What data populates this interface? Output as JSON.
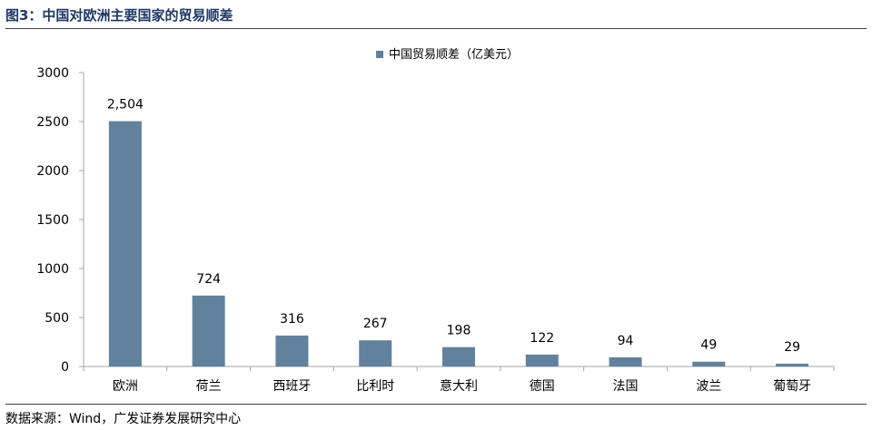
{
  "title": "图3：中国对欧洲主要国家的贸易顺差",
  "source": "数据来源：Wind，广发证券发展研究中心",
  "colors": {
    "bar": "#62819c",
    "axis": "#a6a6a6",
    "title": "#1f3864"
  },
  "chart_data": {
    "type": "bar",
    "title": "",
    "xlabel": "",
    "ylabel": "",
    "legend": {
      "position": "top-center"
    },
    "categories": [
      "欧洲",
      "荷兰",
      "西班牙",
      "比利时",
      "意大利",
      "德国",
      "法国",
      "波兰",
      "葡萄牙"
    ],
    "series": [
      {
        "name": "中国贸易顺差（亿美元）",
        "values": [
          2504,
          724,
          316,
          267,
          198,
          122,
          94,
          49,
          29
        ],
        "labels": [
          "2,504",
          "724",
          "316",
          "267",
          "198",
          "122",
          "94",
          "49",
          "29"
        ]
      }
    ],
    "ylim": [
      0,
      3000
    ],
    "yticks": [
      "0",
      "500",
      "1000",
      "1500",
      "2000",
      "2500",
      "3000"
    ],
    "grid": false
  }
}
